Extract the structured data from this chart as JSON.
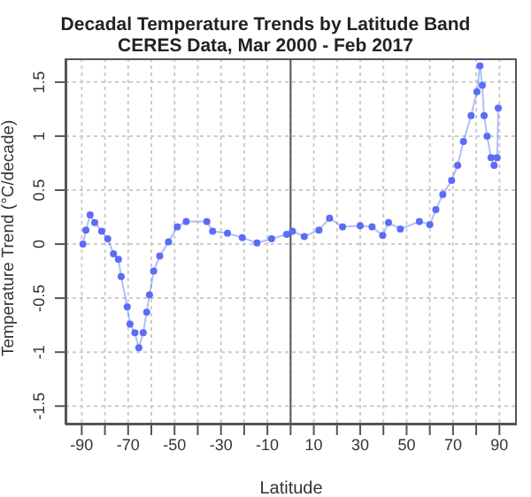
{
  "chart_data": {
    "type": "line",
    "title": "Decadal Temperature Trends by Latitude Band",
    "subtitle": "CERES Data, Mar 2000 - Feb 2017",
    "xlabel": "Latitude",
    "ylabel": "Temperature Trend (°C/decade)",
    "x": [
      -89.5,
      -88.2,
      -86.4,
      -84.4,
      -81.4,
      -78.8,
      -76.3,
      -74.2,
      -73,
      -70.4,
      -69.2,
      -67.1,
      -65.4,
      -63.5,
      -62,
      -60.8,
      -59,
      -56.4,
      -52.6,
      -48.8,
      -45,
      -36.1,
      -33.6,
      -27.2,
      -20.8,
      -14.5,
      -8.2,
      -1.7,
      0.8,
      5.9,
      12.2,
      16.8,
      22.4,
      30,
      35.1,
      39.7,
      42.2,
      47.3,
      55.5,
      60,
      62.6,
      65.6,
      69.4,
      72,
      74.5,
      77.8,
      80.3,
      81.6,
      82.6,
      83.4,
      84.7,
      86.4,
      87.7,
      89,
      89.5
    ],
    "series": [
      {
        "color": "#5b6cf5",
        "values": [
          0.0,
          0.13,
          0.27,
          0.2,
          0.12,
          0.05,
          -0.09,
          -0.14,
          -0.3,
          -0.58,
          -0.74,
          -0.82,
          -0.96,
          -0.82,
          -0.63,
          -0.47,
          -0.25,
          -0.11,
          0.02,
          0.16,
          0.21,
          0.21,
          0.12,
          0.1,
          0.06,
          0.01,
          0.05,
          0.09,
          0.12,
          0.07,
          0.13,
          0.24,
          0.16,
          0.17,
          0.16,
          0.08,
          0.2,
          0.14,
          0.21,
          0.18,
          0.32,
          0.46,
          0.59,
          0.73,
          0.95,
          1.19,
          1.41,
          1.65,
          1.47,
          1.19,
          1.0,
          0.8,
          0.73,
          0.8,
          1.26
        ]
      }
    ],
    "xlim": [
      -97,
      97.5
    ],
    "xticks": [
      -90,
      {
        "value": -80,
        "label": null
      },
      -70,
      {
        "value": -60,
        "label": null
      },
      -50,
      {
        "value": -40,
        "label": null
      },
      -30,
      {
        "value": -20,
        "label": null
      },
      -10,
      {
        "value": 0,
        "label": null
      },
      10,
      {
        "value": 20,
        "label": null
      },
      30,
      {
        "value": 40,
        "label": null
      },
      50,
      {
        "value": 60,
        "label": null
      },
      70,
      {
        "value": 80,
        "label": null
      },
      90
    ],
    "ylim": [
      -1.67,
      1.72
    ],
    "yticks": [
      -1.5,
      -1,
      -0.5,
      0,
      0.5,
      1,
      1.5
    ],
    "ref_lines": [
      {
        "axis": "x",
        "value": 0,
        "color": "#555555"
      }
    ],
    "grid": true,
    "marker": "circle",
    "line_style": "solid",
    "legend": false
  }
}
